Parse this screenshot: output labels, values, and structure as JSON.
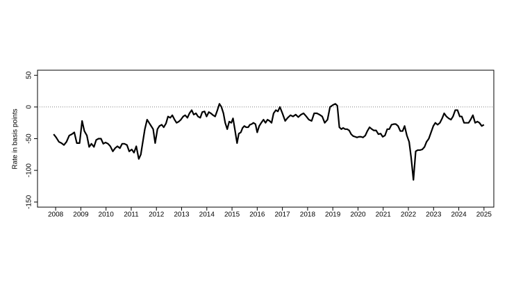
{
  "chart_data": {
    "type": "line",
    "ylabel": "Rate in basis points",
    "xlim": [
      2007.28,
      2025.39
    ],
    "xticks": [
      2008,
      2009,
      2010,
      2011,
      2012,
      2013,
      2014,
      2015,
      2016,
      2017,
      2018,
      2019,
      2020,
      2021,
      2022,
      2023,
      2024,
      2025
    ],
    "ylim": [
      -158,
      58
    ],
    "yticks": [
      -150,
      -100,
      -50,
      0,
      50
    ],
    "reference_line": 0,
    "x": [
      2007.92,
      2008.02,
      2008.13,
      2008.23,
      2008.33,
      2008.43,
      2008.54,
      2008.64,
      2008.74,
      2008.84,
      2008.95,
      2009.05,
      2009.14,
      2009.24,
      2009.33,
      2009.42,
      2009.52,
      2009.61,
      2009.7,
      2009.8,
      2009.89,
      2009.98,
      2010.08,
      2010.17,
      2010.27,
      2010.36,
      2010.45,
      2010.55,
      2010.64,
      2010.73,
      2010.83,
      2010.92,
      2011.02,
      2011.11,
      2011.2,
      2011.3,
      2011.38,
      2011.46,
      2011.54,
      2011.63,
      2011.71,
      2011.79,
      2011.87,
      2011.95,
      2012.04,
      2012.12,
      2012.21,
      2012.29,
      2012.38,
      2012.46,
      2012.55,
      2012.63,
      2012.72,
      2012.8,
      2012.89,
      2012.97,
      2013.06,
      2013.14,
      2013.23,
      2013.31,
      2013.4,
      2013.48,
      2013.57,
      2013.65,
      2013.74,
      2013.82,
      2013.91,
      2013.99,
      2014.08,
      2014.16,
      2014.25,
      2014.33,
      2014.42,
      2014.5,
      2014.58,
      2014.66,
      2014.73,
      2014.81,
      2014.89,
      2014.97,
      2015.04,
      2015.12,
      2015.2,
      2015.27,
      2015.35,
      2015.42,
      2015.49,
      2015.56,
      2015.64,
      2015.71,
      2015.78,
      2015.85,
      2015.93,
      2016.0,
      2016.08,
      2016.16,
      2016.25,
      2016.33,
      2016.41,
      2016.49,
      2016.57,
      2016.65,
      2016.74,
      2016.82,
      2016.9,
      2017.0,
      2017.11,
      2017.21,
      2017.32,
      2017.42,
      2017.53,
      2017.63,
      2017.74,
      2017.84,
      2017.95,
      2018.05,
      2018.16,
      2018.26,
      2018.37,
      2018.47,
      2018.58,
      2018.68,
      2018.79,
      2018.89,
      2019.0,
      2019.1,
      2019.18,
      2019.26,
      2019.34,
      2019.41,
      2019.49,
      2019.57,
      2019.65,
      2019.73,
      2019.81,
      2019.89,
      2019.96,
      2020.04,
      2020.12,
      2020.2,
      2020.29,
      2020.37,
      2020.46,
      2020.55,
      2020.63,
      2020.72,
      2020.81,
      2020.9,
      2020.98,
      2021.07,
      2021.16,
      2021.24,
      2021.33,
      2021.42,
      2021.5,
      2021.59,
      2021.68,
      2021.77,
      2021.85,
      2021.94,
      2022.03,
      2022.11,
      2022.2,
      2022.29,
      2022.37,
      2022.46,
      2022.55,
      2022.64,
      2022.72,
      2022.81,
      2022.9,
      2022.99,
      2023.07,
      2023.16,
      2023.25,
      2023.34,
      2023.42,
      2023.51,
      2023.6,
      2023.69,
      2023.77,
      2023.86,
      2023.95,
      2024.04,
      2024.12,
      2024.21,
      2024.3,
      2024.39,
      2024.47,
      2024.56,
      2024.65,
      2024.74,
      2024.82,
      2024.91,
      2025.0
    ],
    "series": [
      {
        "color": "#000000",
        "values": [
          -43,
          -48,
          -55,
          -57,
          -60,
          -55,
          -45,
          -43,
          -40,
          -57,
          -57,
          -22,
          -38,
          -45,
          -63,
          -58,
          -63,
          -52,
          -50,
          -50,
          -58,
          -56,
          -58,
          -62,
          -70,
          -65,
          -62,
          -65,
          -58,
          -58,
          -60,
          -70,
          -67,
          -72,
          -62,
          -82,
          -75,
          -55,
          -35,
          -20,
          -25,
          -30,
          -35,
          -57,
          -35,
          -30,
          -28,
          -32,
          -26,
          -15,
          -17,
          -13,
          -20,
          -25,
          -23,
          -20,
          -15,
          -13,
          -17,
          -10,
          -5,
          -12,
          -10,
          -15,
          -17,
          -8,
          -7,
          -15,
          -8,
          -10,
          -13,
          -15,
          -5,
          5,
          0,
          -10,
          -25,
          -35,
          -23,
          -25,
          -18,
          -37,
          -57,
          -42,
          -40,
          -33,
          -30,
          -32,
          -32,
          -28,
          -27,
          -25,
          -27,
          -40,
          -30,
          -25,
          -20,
          -25,
          -20,
          -22,
          -25,
          -10,
          -5,
          -7,
          0,
          -10,
          -22,
          -17,
          -13,
          -15,
          -12,
          -16,
          -12,
          -10,
          -15,
          -20,
          -22,
          -10,
          -10,
          -12,
          -15,
          -25,
          -20,
          0,
          3,
          5,
          2,
          -32,
          -35,
          -33,
          -35,
          -35,
          -37,
          -43,
          -46,
          -47,
          -48,
          -47,
          -47,
          -48,
          -45,
          -38,
          -32,
          -35,
          -37,
          -37,
          -43,
          -42,
          -47,
          -45,
          -35,
          -35,
          -28,
          -27,
          -27,
          -30,
          -38,
          -38,
          -30,
          -45,
          -55,
          -80,
          -115,
          -70,
          -68,
          -68,
          -67,
          -63,
          -55,
          -50,
          -40,
          -30,
          -25,
          -28,
          -25,
          -18,
          -10,
          -15,
          -18,
          -20,
          -15,
          -5,
          -5,
          -15,
          -15,
          -25,
          -25,
          -25,
          -20,
          -13,
          -25,
          -23,
          -25,
          -30,
          -28
        ]
      }
    ]
  }
}
